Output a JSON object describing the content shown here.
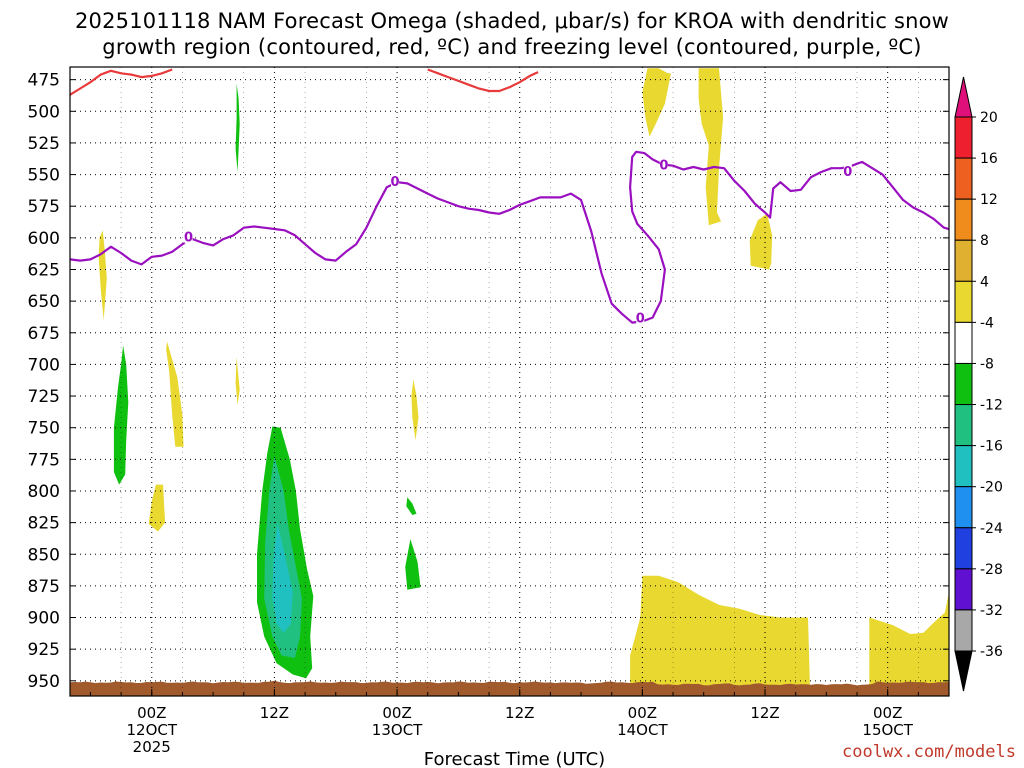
{
  "title_line1": "2025101118 NAM Forecast Omega (shaded, μbar/s) for KROA with dendritic snow",
  "title_line2": "growth region (contoured, red, ºC) and freezing level (contoured, purple, ºC)",
  "credit": "coolwx.com/models",
  "chart_data": {
    "type": "time-height cross-section",
    "xlabel": "Forecast Time (UTC)",
    "ylabel": "",
    "x_unit": "forecast hours from 2025-10-11 18Z",
    "xlim": [
      -2,
      84
    ],
    "ylim_hPa": [
      465,
      962
    ],
    "y_ticks": [
      "475",
      "500",
      "525",
      "550",
      "575",
      "600",
      "625",
      "650",
      "675",
      "700",
      "725",
      "750",
      "775",
      "800",
      "825",
      "850",
      "875",
      "900",
      "925",
      "950"
    ],
    "x_ticks": [
      {
        "x": 6,
        "line1": "00Z",
        "line2": "12OCT",
        "line3": "2025"
      },
      {
        "x": 18,
        "line1": "12Z",
        "line2": "",
        "line3": ""
      },
      {
        "x": 30,
        "line1": "00Z",
        "line2": "13OCT",
        "line3": ""
      },
      {
        "x": 42,
        "line1": "12Z",
        "line2": "",
        "line3": ""
      },
      {
        "x": 54,
        "line1": "00Z",
        "line2": "14OCT",
        "line3": ""
      },
      {
        "x": 66,
        "line1": "12Z",
        "line2": "",
        "line3": ""
      },
      {
        "x": 78,
        "line1": "00Z",
        "line2": "15OCT",
        "line3": ""
      }
    ],
    "colorbar": {
      "labels": [
        "20",
        "16",
        "12",
        "8",
        "4",
        "-4",
        "-8",
        "-12",
        "-16",
        "-20",
        "-24",
        "-28",
        "-32",
        "-36"
      ],
      "colors": [
        "#ee2030",
        "#ee6020",
        "#f08c1c",
        "#e0b030",
        "#e8d830",
        "#ffffff",
        "#10c010",
        "#20c080",
        "#20c0c0",
        "#2090f0",
        "#2040e0",
        "#6010d0",
        "#9a10c0",
        "#a8a8a8"
      ],
      "top_arrow_color": "#e0107a",
      "bottom_arrow_color": "#000000"
    },
    "freezing_level": {
      "name": "freezing level 0ºC",
      "color": "#9a10c0",
      "label": "0",
      "label_points": [
        [
          9.6,
          599
        ],
        [
          29.8,
          555
        ],
        [
          53.8,
          663
        ],
        [
          56.1,
          542
        ],
        [
          74.1,
          547
        ]
      ],
      "points": [
        [
          -2,
          617
        ],
        [
          -1,
          618
        ],
        [
          0,
          617
        ],
        [
          1,
          613
        ],
        [
          2,
          607
        ],
        [
          3,
          612
        ],
        [
          4,
          618
        ],
        [
          5,
          621
        ],
        [
          6,
          615
        ],
        [
          7,
          614
        ],
        [
          8,
          611
        ],
        [
          9,
          605
        ],
        [
          10,
          601
        ],
        [
          11,
          604
        ],
        [
          12,
          606
        ],
        [
          13,
          601
        ],
        [
          14,
          598
        ],
        [
          15,
          592
        ],
        [
          16,
          591
        ],
        [
          17,
          592
        ],
        [
          18,
          593
        ],
        [
          19,
          594
        ],
        [
          20,
          598
        ],
        [
          21,
          605
        ],
        [
          22,
          612
        ],
        [
          23,
          617
        ],
        [
          24,
          618
        ],
        [
          25,
          611
        ],
        [
          26,
          605
        ],
        [
          27,
          592
        ],
        [
          28,
          575
        ],
        [
          29,
          560
        ],
        [
          30,
          556
        ],
        [
          31,
          557
        ],
        [
          32,
          561
        ],
        [
          33,
          565
        ],
        [
          34,
          569
        ],
        [
          35,
          572
        ],
        [
          36,
          575
        ],
        [
          37,
          577
        ],
        [
          38,
          578
        ],
        [
          39,
          580
        ],
        [
          40,
          581
        ],
        [
          41,
          578
        ],
        [
          42,
          574
        ],
        [
          43,
          571
        ],
        [
          44,
          568
        ],
        [
          45,
          568
        ],
        [
          46,
          568
        ],
        [
          47,
          565
        ],
        [
          48,
          570
        ],
        [
          49,
          595
        ],
        [
          50,
          628
        ],
        [
          51,
          652
        ],
        [
          52,
          660
        ],
        [
          53,
          667
        ],
        [
          54,
          666
        ],
        [
          55,
          663
        ],
        [
          55.8,
          650
        ],
        [
          56.2,
          625
        ],
        [
          55.6,
          609
        ],
        [
          54.5,
          598
        ],
        [
          53.5,
          589
        ],
        [
          53,
          579
        ],
        [
          52.8,
          560
        ],
        [
          53,
          536
        ],
        [
          53.4,
          532
        ],
        [
          54.2,
          533
        ],
        [
          55,
          538
        ],
        [
          56,
          542
        ],
        [
          57,
          543
        ],
        [
          58,
          546
        ],
        [
          59,
          544
        ],
        [
          60,
          546
        ],
        [
          61,
          544
        ],
        [
          62,
          545
        ],
        [
          63,
          555
        ],
        [
          64,
          563
        ],
        [
          65,
          573
        ],
        [
          66,
          580
        ],
        [
          66.5,
          584
        ],
        [
          66.8,
          561
        ],
        [
          67.5,
          556
        ],
        [
          68.5,
          563
        ],
        [
          69.5,
          562
        ],
        [
          70.5,
          552
        ],
        [
          71.5,
          548
        ],
        [
          72.5,
          545
        ],
        [
          73.5,
          545
        ],
        [
          74.5,
          543
        ],
        [
          75.5,
          540
        ],
        [
          76.5,
          545
        ],
        [
          77.5,
          550
        ],
        [
          78.5,
          560
        ],
        [
          79.5,
          570
        ],
        [
          80.5,
          576
        ],
        [
          81.5,
          580
        ],
        [
          82.5,
          585
        ],
        [
          83.5,
          592
        ],
        [
          84,
          593
        ]
      ]
    },
    "dgz_boundary": {
      "name": "dendritic snow growth region",
      "color": "#e83a3a",
      "segments": [
        [
          [
            -2,
            487
          ],
          [
            -1,
            482
          ],
          [
            0,
            477
          ],
          [
            1,
            471
          ],
          [
            2,
            468
          ],
          [
            3,
            470
          ],
          [
            4,
            471
          ],
          [
            5,
            473
          ],
          [
            6,
            472
          ],
          [
            7,
            470
          ],
          [
            8,
            467
          ]
        ],
        [
          [
            33,
            467
          ],
          [
            34,
            470
          ],
          [
            35,
            473
          ],
          [
            36,
            476
          ],
          [
            37,
            479
          ],
          [
            38,
            482
          ],
          [
            39,
            484
          ],
          [
            40,
            484
          ],
          [
            41,
            481
          ],
          [
            42,
            477
          ],
          [
            43,
            472
          ],
          [
            43.8,
            469
          ]
        ]
      ]
    },
    "omega_regions": [
      {
        "value": "4",
        "color": "#e8d830",
        "points": [
          [
            54.5,
            466
          ],
          [
            55.6,
            466
          ],
          [
            56.5,
            470
          ],
          [
            56.8,
            470
          ],
          [
            56.2,
            494
          ],
          [
            55.3,
            510
          ],
          [
            54.7,
            520
          ],
          [
            54.3,
            505
          ],
          [
            54.0,
            485
          ]
        ]
      },
      {
        "value": "4",
        "color": "#e8d830",
        "points": [
          [
            59.5,
            466
          ],
          [
            61.5,
            466
          ],
          [
            61.9,
            505
          ],
          [
            61.5,
            545
          ],
          [
            61.3,
            580
          ],
          [
            61.7,
            587
          ],
          [
            60.5,
            590
          ],
          [
            60.2,
            560
          ],
          [
            60.5,
            527
          ],
          [
            59.8,
            510
          ],
          [
            59.5,
            490
          ]
        ]
      },
      {
        "value": "4",
        "color": "#e8d830",
        "points": [
          [
            66.2,
            581
          ],
          [
            66.7,
            598
          ],
          [
            66.6,
            620
          ],
          [
            66.4,
            625
          ],
          [
            64.6,
            622
          ],
          [
            64.5,
            602
          ],
          [
            65.3,
            586
          ]
        ]
      },
      {
        "value": "4",
        "color": "#e8d830",
        "points": [
          [
            1.2,
            594
          ],
          [
            1.4,
            610
          ],
          [
            1.6,
            632
          ],
          [
            1.3,
            665
          ],
          [
            1.0,
            640
          ],
          [
            0.8,
            615
          ],
          [
            0.9,
            600
          ]
        ]
      },
      {
        "value": "4",
        "color": "#e8d830",
        "points": [
          [
            7.5,
            682
          ],
          [
            8.5,
            710
          ],
          [
            9.0,
            740
          ],
          [
            9.1,
            765
          ],
          [
            8.3,
            765
          ],
          [
            8.0,
            740
          ],
          [
            7.7,
            705
          ],
          [
            7.4,
            688
          ]
        ]
      },
      {
        "value": "4",
        "color": "#e8d830",
        "points": [
          [
            6.4,
            795
          ],
          [
            7.1,
            795
          ],
          [
            7.3,
            825
          ],
          [
            6.6,
            832
          ],
          [
            5.7,
            826
          ],
          [
            6.0,
            808
          ]
        ]
      },
      {
        "value": "4",
        "color": "#e8d830",
        "points": [
          [
            14.3,
            694
          ],
          [
            14.6,
            720
          ],
          [
            14.4,
            732
          ],
          [
            14.2,
            715
          ]
        ]
      },
      {
        "value": "4",
        "color": "#e8d830",
        "points": [
          [
            31.6,
            712
          ],
          [
            31.9,
            725
          ],
          [
            32.1,
            742
          ],
          [
            31.8,
            760
          ],
          [
            31.5,
            742
          ],
          [
            31.4,
            725
          ]
        ]
      },
      {
        "value": "4",
        "color": "#e8d830",
        "points": [
          [
            52.8,
            956
          ],
          [
            52.8,
            930
          ],
          [
            53.8,
            900
          ],
          [
            54.0,
            867
          ],
          [
            55.6,
            867
          ],
          [
            57.5,
            872
          ],
          [
            59.5,
            882
          ],
          [
            61.5,
            890
          ],
          [
            63.5,
            893
          ],
          [
            65.5,
            898
          ],
          [
            67.5,
            900
          ],
          [
            70.2,
            900
          ],
          [
            70.4,
            956
          ]
        ]
      },
      {
        "value": "4",
        "color": "#e8d830",
        "points": [
          [
            76.2,
            956
          ],
          [
            76.2,
            900
          ],
          [
            78.5,
            906
          ],
          [
            80.2,
            913
          ],
          [
            81.5,
            912
          ],
          [
            82.5,
            904
          ],
          [
            83.6,
            896
          ],
          [
            84,
            880
          ],
          [
            84,
            959
          ],
          [
            80,
            960
          ]
        ]
      },
      {
        "value": "-4",
        "color": "#10c010",
        "points": [
          [
            14.3,
            478
          ],
          [
            14.5,
            490
          ],
          [
            14.6,
            510
          ],
          [
            14.5,
            530
          ],
          [
            14.4,
            548
          ],
          [
            14.2,
            530
          ],
          [
            14.3,
            505
          ]
        ]
      },
      {
        "value": "-4",
        "color": "#10c010",
        "points": [
          [
            3.2,
            685
          ],
          [
            3.5,
            700
          ],
          [
            3.7,
            730
          ],
          [
            3.5,
            760
          ],
          [
            3.4,
            787
          ],
          [
            2.8,
            795
          ],
          [
            2.3,
            785
          ],
          [
            2.3,
            750
          ],
          [
            2.7,
            718
          ],
          [
            3.0,
            700
          ]
        ]
      },
      {
        "value": "-4",
        "color": "#10c010",
        "points": [
          [
            17.8,
            749
          ],
          [
            18.6,
            750
          ],
          [
            19.5,
            775
          ],
          [
            20.1,
            800
          ],
          [
            20.5,
            830
          ],
          [
            21.2,
            862
          ],
          [
            21.8,
            883
          ],
          [
            21.5,
            915
          ],
          [
            21.7,
            940
          ],
          [
            21.1,
            948
          ],
          [
            19.8,
            945
          ],
          [
            18.2,
            936
          ],
          [
            17.0,
            915
          ],
          [
            16.3,
            888
          ],
          [
            16.3,
            850
          ],
          [
            16.8,
            800
          ],
          [
            17.3,
            770
          ]
        ]
      },
      {
        "value": "-4",
        "color": "#10c010",
        "points": [
          [
            31.0,
            805
          ],
          [
            31.5,
            810
          ],
          [
            31.9,
            818
          ],
          [
            31.5,
            819
          ],
          [
            30.9,
            812
          ]
        ]
      },
      {
        "value": "-4",
        "color": "#10c010",
        "points": [
          [
            31.3,
            838
          ],
          [
            32.0,
            856
          ],
          [
            32.3,
            876
          ],
          [
            31.0,
            878
          ],
          [
            30.8,
            860
          ]
        ]
      },
      {
        "value": "-8",
        "color": "#20c080",
        "points": [
          [
            18.0,
            772
          ],
          [
            18.9,
            800
          ],
          [
            19.4,
            830
          ],
          [
            20.1,
            860
          ],
          [
            20.7,
            885
          ],
          [
            20.5,
            915
          ],
          [
            20.0,
            932
          ],
          [
            18.7,
            930
          ],
          [
            17.8,
            915
          ],
          [
            17.0,
            885
          ],
          [
            17.1,
            840
          ],
          [
            17.5,
            800
          ]
        ]
      },
      {
        "value": "-12",
        "color": "#20c0c0",
        "points": [
          [
            18.3,
            825
          ],
          [
            19.0,
            850
          ],
          [
            19.8,
            880
          ],
          [
            19.6,
            905
          ],
          [
            18.9,
            912
          ],
          [
            18.2,
            905
          ],
          [
            17.8,
            885
          ],
          [
            17.9,
            852
          ]
        ]
      }
    ],
    "terrain": {
      "name": "terrain",
      "color": "#a05a2c"
    }
  }
}
